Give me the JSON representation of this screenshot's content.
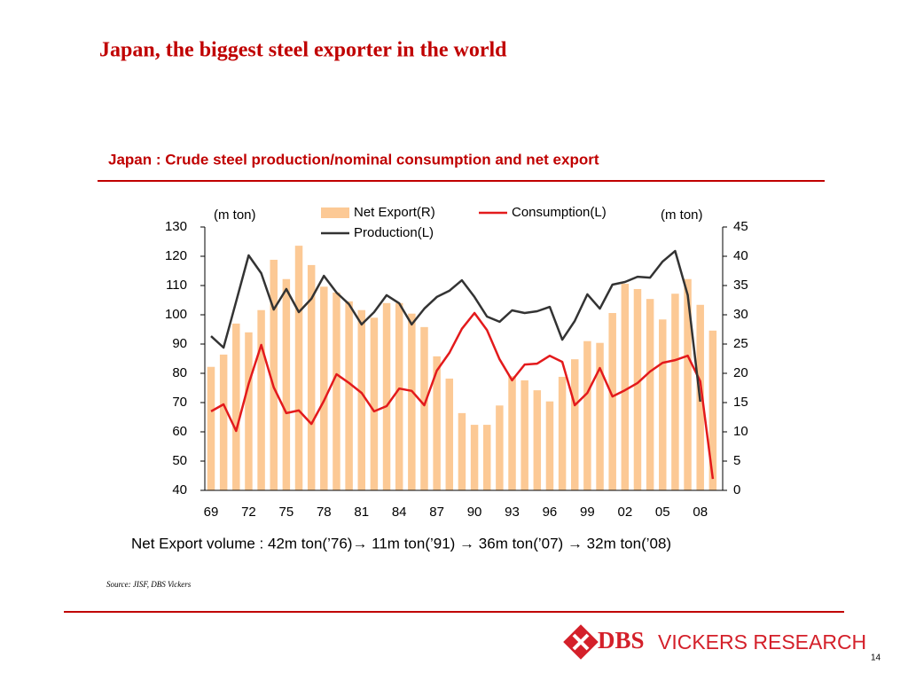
{
  "slide_title": "Japan, the biggest steel exporter in the world",
  "chart_data": {
    "type": "combo",
    "title": "Japan : Crude steel production/nominal consumption and net export",
    "y_label": "(m ton)",
    "y2_label": "(m ton)",
    "categories": [
      "69",
      null,
      null,
      "72",
      null,
      null,
      "75",
      null,
      null,
      "78",
      null,
      null,
      "81",
      null,
      null,
      "84",
      null,
      null,
      "87",
      null,
      null,
      "90",
      null,
      null,
      "93",
      null,
      null,
      "96",
      null,
      null,
      "99",
      null,
      null,
      "02",
      null,
      null,
      "05",
      null,
      null,
      "08",
      null
    ],
    "series": [
      {
        "name": "Net Export(R)",
        "type": "bar",
        "axis": "y2",
        "color": "#fcc995",
        "values": [
          21.1,
          23.2,
          28.5,
          27,
          30.8,
          39.4,
          36.1,
          41.8,
          38.5,
          34.8,
          33.8,
          32.3,
          30.8,
          29.5,
          32,
          32,
          30.2,
          27.9,
          22.9,
          19.1,
          13.2,
          11.2,
          11.2,
          14.5,
          19.5,
          18.8,
          17.1,
          15.2,
          19.4,
          22.4,
          25.5,
          25.2,
          30.3,
          35.3,
          34.4,
          32.7,
          29.2,
          33.6,
          36.1,
          31.7,
          27.3
        ]
      },
      {
        "name": "Consumption(L)",
        "type": "line",
        "color": "#e31a1c",
        "values": [
          67,
          69.4,
          60.3,
          76.4,
          89.7,
          75.2,
          66.4,
          67.3,
          62.7,
          70.6,
          79.7,
          76.7,
          73.3,
          67,
          68.8,
          74.8,
          74,
          69.1,
          80.9,
          87,
          95.2,
          100.6,
          94.8,
          84.8,
          77.6,
          83,
          83.3,
          86,
          83.9,
          69.1,
          73.3,
          81.8,
          72.1,
          74.2,
          76.7,
          80.6,
          83.6,
          84.5,
          86,
          77.3,
          43.9
        ]
      },
      {
        "name": "Production(L)",
        "type": "line",
        "color": "#333333",
        "values": [
          92.7,
          88.8,
          104.5,
          120.3,
          114.2,
          101.8,
          108.8,
          100.9,
          105.5,
          113.3,
          107.6,
          103.6,
          96.7,
          100.9,
          106.7,
          103.9,
          96.7,
          102.1,
          106.1,
          108.2,
          111.8,
          106.1,
          99.4,
          97.6,
          101.5,
          100.6,
          101.2,
          102.7,
          91.5,
          97.9,
          107,
          102.1,
          110.3,
          111.2,
          113,
          112.7,
          118.2,
          121.8,
          106.7,
          70.3,
          null
        ]
      }
    ],
    "ylim": [
      40,
      130
    ],
    "yticks": [
      40,
      50,
      60,
      70,
      80,
      90,
      100,
      110,
      120,
      130
    ],
    "y2lim": [
      0,
      45
    ],
    "y2ticks": [
      0,
      5,
      10,
      15,
      20,
      25,
      30,
      35,
      40,
      45
    ],
    "legend": "top"
  },
  "note": "Net Export volume : 42m ton(’76)→ 11m ton(’91) → 36m ton(’07) → 32m ton(’08)",
  "source": "Source: JISF, DBS Vickers",
  "logo": {
    "brand": "DBS",
    "text": "VICKERS RESEARCH"
  },
  "page_number": "14"
}
